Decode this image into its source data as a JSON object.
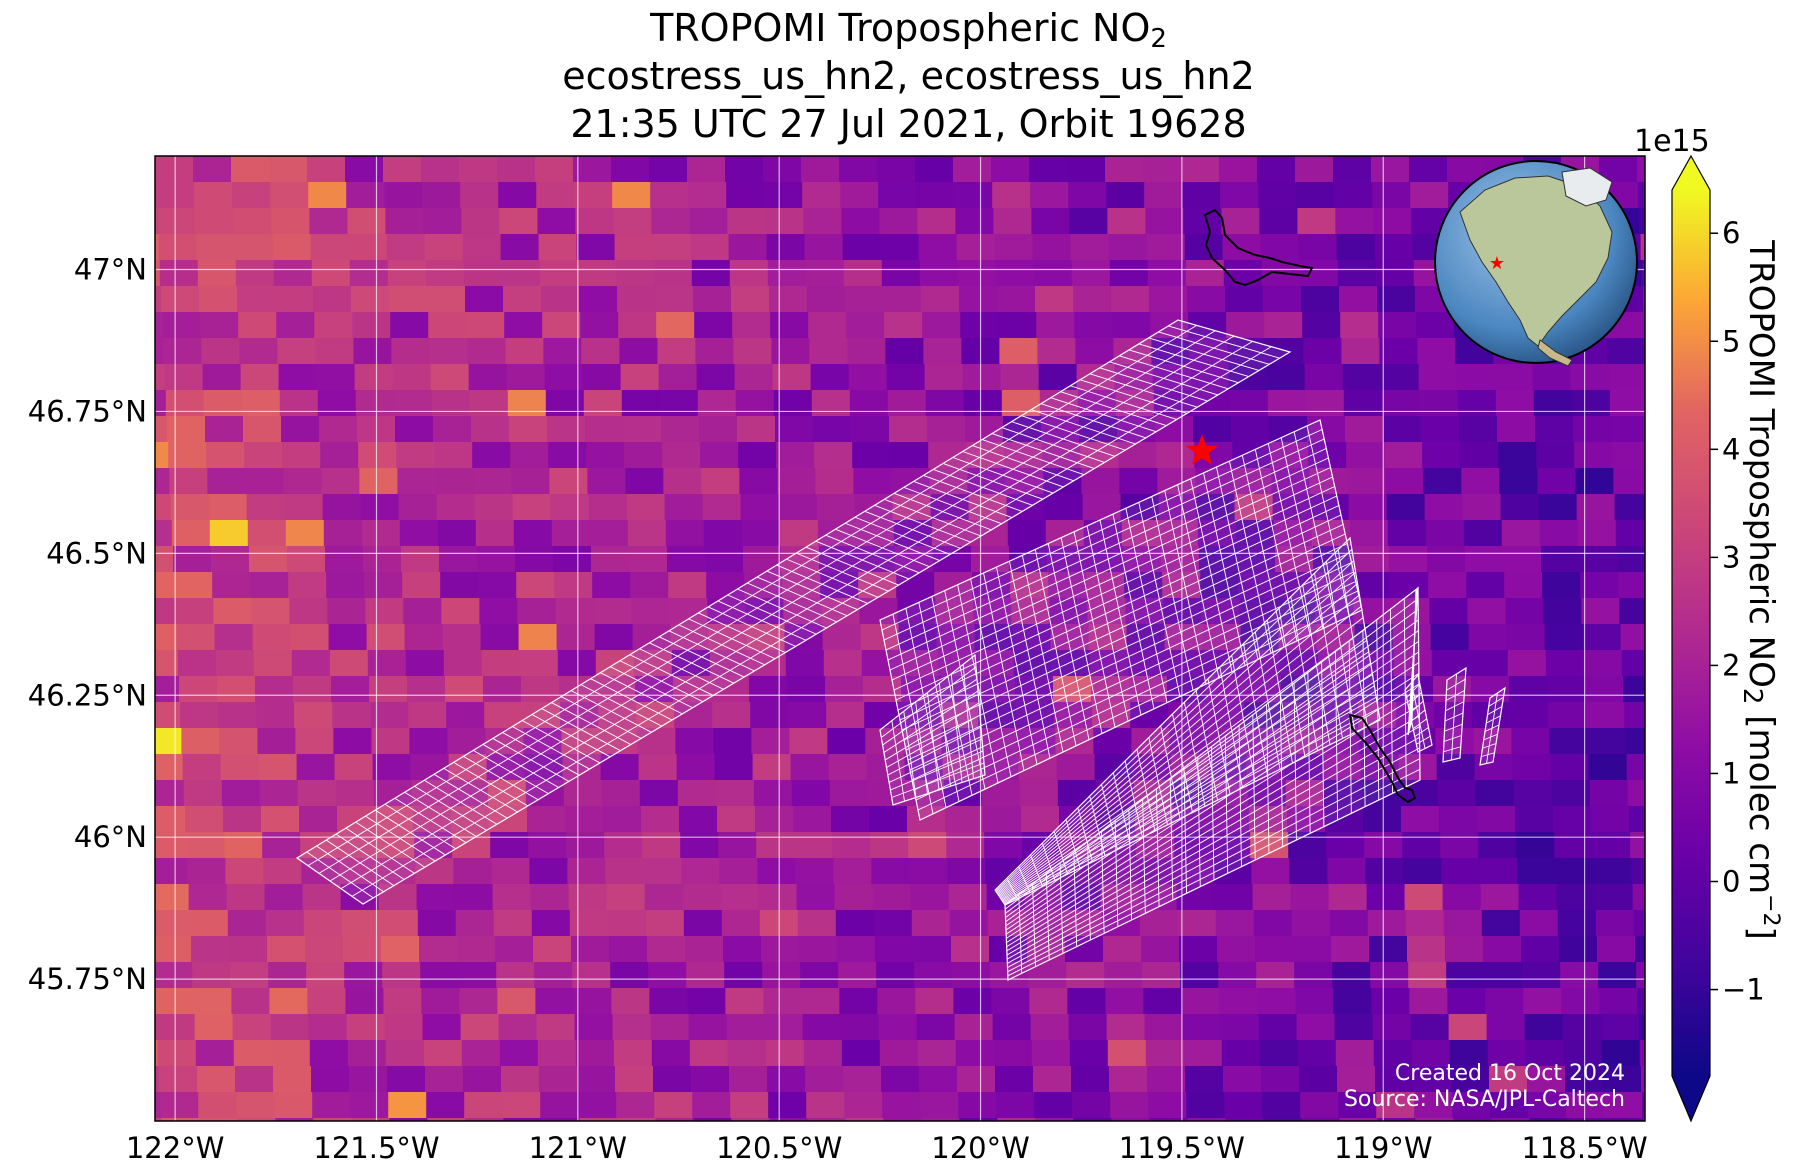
{
  "title": {
    "line1_prefix": "TROPOMI Tropospheric NO",
    "line1_sub": "2",
    "line2": "ecostress_us_hn2, ecostress_us_hn2",
    "line3": "21:35 UTC 27 Jul 2021, Orbit 19628"
  },
  "map": {
    "lon_range": [
      -122.05,
      -118.35
    ],
    "lat_range": [
      45.5,
      47.2
    ],
    "lon_ticks": [
      {
        "value": -122.0,
        "label": "122°W"
      },
      {
        "value": -121.5,
        "label": "121.5°W"
      },
      {
        "value": -121.0,
        "label": "121°W"
      },
      {
        "value": -120.5,
        "label": "120.5°W"
      },
      {
        "value": -120.0,
        "label": "120°W"
      },
      {
        "value": -119.5,
        "label": "119.5°W"
      },
      {
        "value": -119.0,
        "label": "119°W"
      },
      {
        "value": -118.5,
        "label": "118.5°W"
      }
    ],
    "lat_ticks": [
      {
        "value": 47.0,
        "label": "47°N"
      },
      {
        "value": 46.75,
        "label": "46.75°N"
      },
      {
        "value": 46.5,
        "label": "46.5°N"
      },
      {
        "value": 46.25,
        "label": "46.25°N"
      },
      {
        "value": 46.0,
        "label": "46°N"
      },
      {
        "value": 45.75,
        "label": "45.75°N"
      }
    ],
    "grid": true,
    "site_marker": {
      "lon": -119.45,
      "lat": 46.68,
      "color": "#ff0000"
    },
    "footprint_color": "#ffffff",
    "credits": {
      "created": "Created 16 Oct 2024",
      "source": "Source: NASA/JPL-Caltech"
    },
    "inset": "globe-icon",
    "colormap": "plasma"
  },
  "colorbar": {
    "min": -1.8,
    "max": 6.4,
    "extend": "both",
    "ticks": [
      {
        "value": -1,
        "label": "−1"
      },
      {
        "value": 0,
        "label": "0"
      },
      {
        "value": 1,
        "label": "1"
      },
      {
        "value": 2,
        "label": "2"
      },
      {
        "value": 3,
        "label": "3"
      },
      {
        "value": 4,
        "label": "4"
      },
      {
        "value": 5,
        "label": "5"
      },
      {
        "value": 6,
        "label": "6"
      }
    ],
    "exponent": "1e15",
    "label_prefix": "TROPOMI Tropospheric NO",
    "label_sub": "2",
    "label_mid": " [molec cm",
    "label_sup": "−2",
    "label_suffix": "]"
  }
}
